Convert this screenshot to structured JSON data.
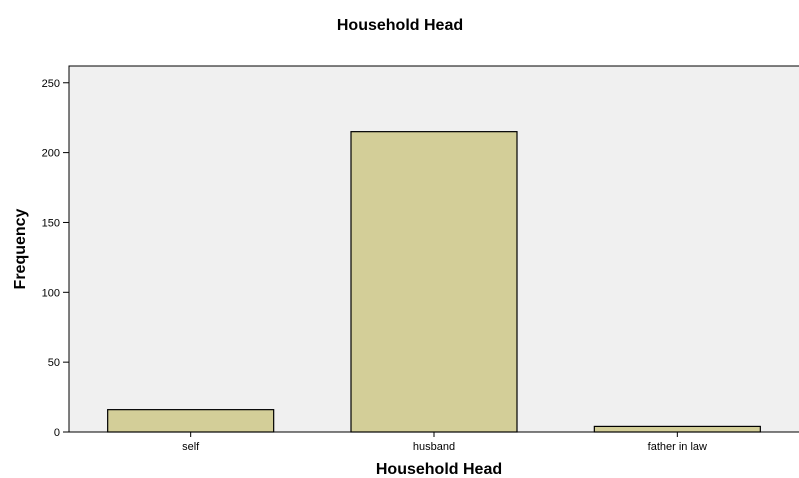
{
  "chart_data": {
    "type": "bar",
    "title": "Household Head",
    "xlabel": "Household Head",
    "ylabel": "Frequency",
    "categories": [
      "self",
      "husband",
      "father in law"
    ],
    "values": [
      16,
      215,
      4
    ],
    "ylim": [
      0,
      262
    ],
    "yticks": [
      0,
      50,
      100,
      150,
      200,
      250
    ],
    "grid": false,
    "legend": "none",
    "colors": {
      "bar_fill": "#d3ce98",
      "bar_stroke": "#000000",
      "plot_background": "#f0f0f0",
      "axis": "#000000"
    }
  }
}
